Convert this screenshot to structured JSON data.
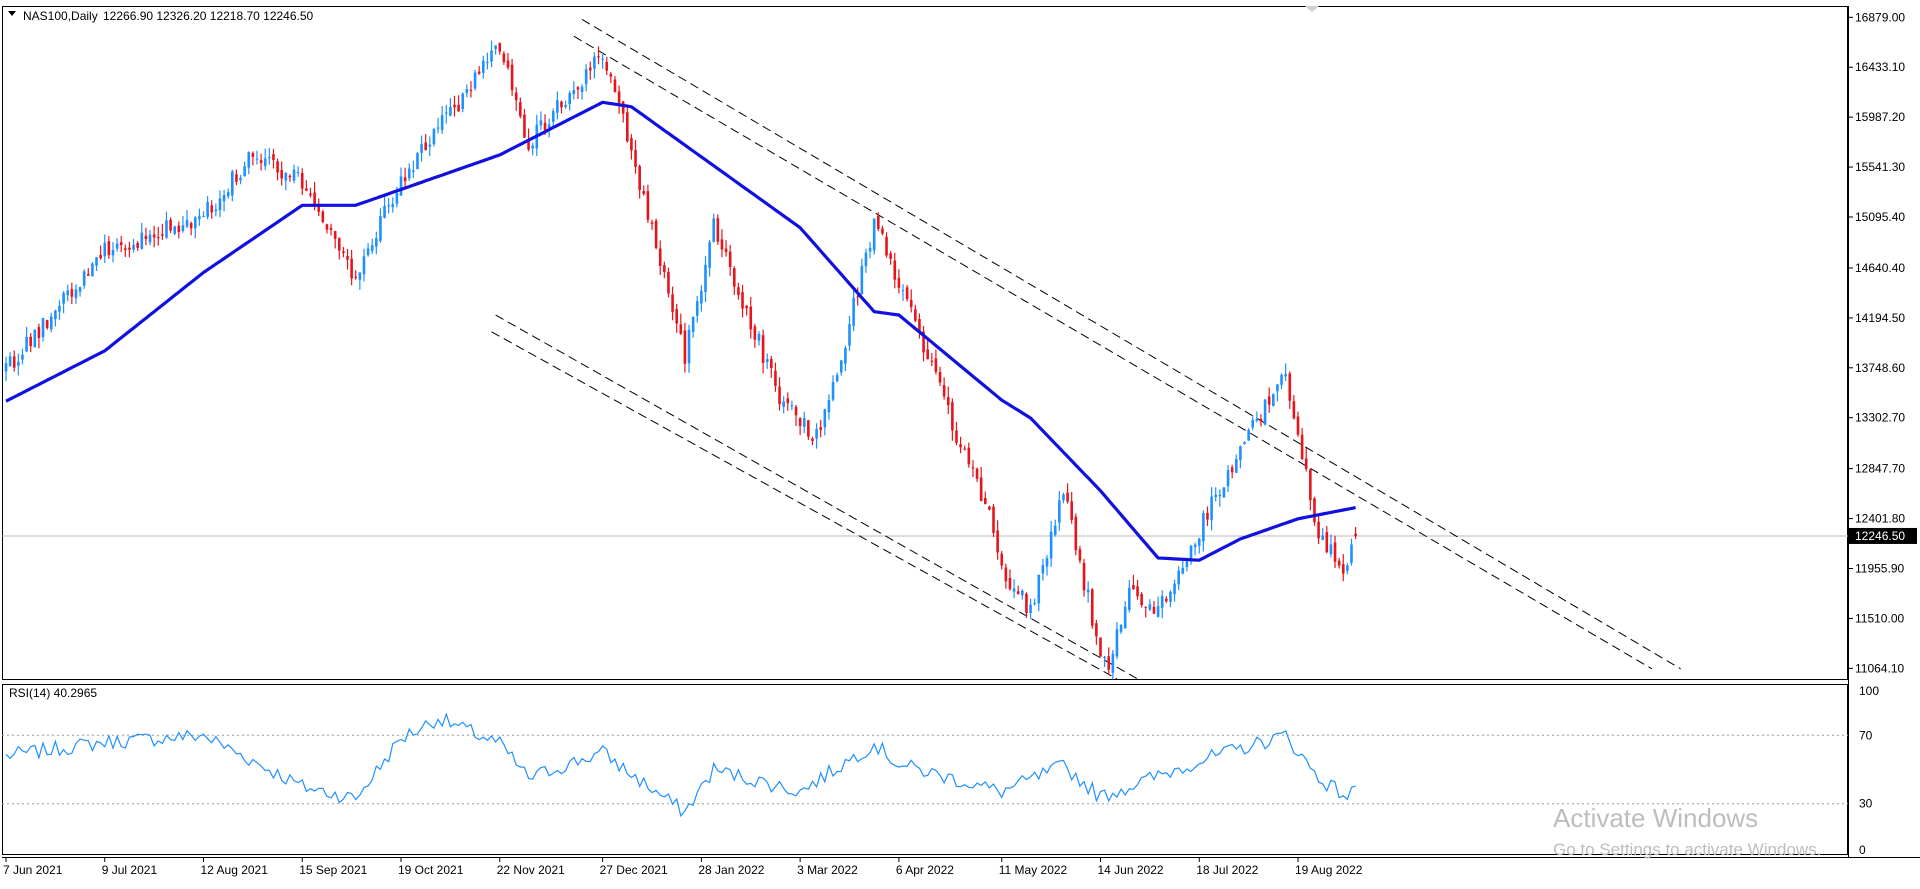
{
  "header": {
    "symbol": "NAS100,Daily",
    "ohlc": "12266.90 12326.20 12218.70 12246.50"
  },
  "price_axis": {
    "ticks": [
      "16879.00",
      "16433.10",
      "15987.20",
      "15541.30",
      "15095.40",
      "14640.40",
      "14194.50",
      "13748.60",
      "13302.70",
      "12847.70",
      "12401.80",
      "11955.90",
      "11510.00",
      "11064.10"
    ],
    "current_label": "12246.50"
  },
  "rsi": {
    "label": "RSI(14) 40.2965",
    "ticks": [
      "100",
      "70",
      "30",
      "0"
    ]
  },
  "time_axis": {
    "labels": [
      "7 Jun 2021",
      "9 Jul 2021",
      "12 Aug 2021",
      "15 Sep 2021",
      "19 Oct 2021",
      "22 Nov 2021",
      "27 Dec 2021",
      "28 Jan 2022",
      "3 Mar 2022",
      "6 Apr 2022",
      "11 May 2022",
      "14 Jun 2022",
      "18 Jul 2022",
      "19 Aug 2022"
    ]
  },
  "watermark": {
    "line1": "Activate Windows",
    "line2": "Go to Settings to activate Windows."
  },
  "colors": {
    "bull": "#1e90ff",
    "bear": "#e8141c",
    "ma": "#1010e0",
    "rsi": "#1e90ff",
    "channel": "#000000"
  },
  "chart_data": [
    {
      "type": "candlestick",
      "symbol": "NAS100",
      "timeframe": "Daily",
      "ylim": [
        10960,
        16980
      ],
      "last": {
        "open": 12266.9,
        "high": 12326.2,
        "low": 12218.7,
        "close": 12246.5
      },
      "close_waypoints": [
        {
          "x": "7 Jun 2021",
          "y": 13720
        },
        {
          "x": "9 Jul 2021",
          "y": 14800
        },
        {
          "x": "12 Aug 2021",
          "y": 15100
        },
        {
          "x": "30 Aug 2021",
          "y": 15650
        },
        {
          "x": "15 Sep 2021",
          "y": 15400
        },
        {
          "x": "4 Oct 2021",
          "y": 14550
        },
        {
          "x": "19 Oct 2021",
          "y": 15450
        },
        {
          "x": "22 Nov 2021",
          "y": 16600
        },
        {
          "x": "1 Dec 2021",
          "y": 15750
        },
        {
          "x": "27 Dec 2021",
          "y": 16550
        },
        {
          "x": "5 Jan 2022",
          "y": 15700
        },
        {
          "x": "24 Jan 2022",
          "y": 13850
        },
        {
          "x": "2 Feb 2022",
          "y": 15000
        },
        {
          "x": "24 Feb 2022",
          "y": 13500
        },
        {
          "x": "8 Mar 2022",
          "y": 13150
        },
        {
          "x": "14 Mar 2022",
          "y": 13400
        },
        {
          "x": "29 Mar 2022",
          "y": 15050
        },
        {
          "x": "6 Apr 2022",
          "y": 14500
        },
        {
          "x": "9 May 2022",
          "y": 12300
        },
        {
          "x": "11 May 2022",
          "y": 11900
        },
        {
          "x": "20 May 2022",
          "y": 11600
        },
        {
          "x": "1 Jun 2022",
          "y": 12650
        },
        {
          "x": "14 Jun 2022",
          "y": 11200
        },
        {
          "x": "16 Jun 2022",
          "y": 11100
        },
        {
          "x": "23 Jun 2022",
          "y": 11800
        },
        {
          "x": "4 Jul 2022",
          "y": 11600
        },
        {
          "x": "18 Jul 2022",
          "y": 12300
        },
        {
          "x": "1 Aug 2022",
          "y": 13050
        },
        {
          "x": "16 Aug 2022",
          "y": 13680
        },
        {
          "x": "19 Aug 2022",
          "y": 13200
        },
        {
          "x": "26 Aug 2022",
          "y": 12250
        },
        {
          "x": "6 Sep 2022",
          "y": 11950
        },
        {
          "x": "8 Sep 2022",
          "y": 12246.5
        }
      ],
      "moving_average": [
        {
          "x": "7 Jun 2021",
          "y": 13450
        },
        {
          "x": "9 Jul 2021",
          "y": 13900
        },
        {
          "x": "12 Aug 2021",
          "y": 14600
        },
        {
          "x": "15 Sep 2021",
          "y": 15200
        },
        {
          "x": "4 Oct 2021",
          "y": 15200
        },
        {
          "x": "22 Nov 2021",
          "y": 15650
        },
        {
          "x": "27 Dec 2021",
          "y": 16120
        },
        {
          "x": "5 Jan 2022",
          "y": 16080
        },
        {
          "x": "3 Mar 2022",
          "y": 15000
        },
        {
          "x": "29 Mar 2022",
          "y": 14250
        },
        {
          "x": "6 Apr 2022",
          "y": 14220
        },
        {
          "x": "11 May 2022",
          "y": 13460
        },
        {
          "x": "20 May 2022",
          "y": 13300
        },
        {
          "x": "14 Jun 2022",
          "y": 12650
        },
        {
          "x": "4 Jul 2022",
          "y": 12050
        },
        {
          "x": "18 Jul 2022",
          "y": 12030
        },
        {
          "x": "1 Aug 2022",
          "y": 12220
        },
        {
          "x": "19 Aug 2022",
          "y": 12400
        },
        {
          "x": "8 Sep 2022",
          "y": 12500
        }
      ],
      "channel_lines": [
        {
          "from": {
            "x": "20 Dec 2021",
            "y": 16860
          },
          "to": {
            "x": "28 Dec 2022",
            "y": 11060
          }
        },
        {
          "from": {
            "x": "16 Dec 2021",
            "y": 16710
          },
          "to": {
            "x": "19 Dec 2022",
            "y": 11060
          }
        },
        {
          "from": {
            "x": "19 Nov 2021",
            "y": 14220
          },
          "to": {
            "x": "27 Jun 2022",
            "y": 10970
          }
        },
        {
          "from": {
            "x": "18 Nov 2021",
            "y": 14070
          },
          "to": {
            "x": "20 Jun 2022",
            "y": 10970
          }
        }
      ]
    },
    {
      "type": "line",
      "name": "RSI(14)",
      "ylim": [
        0,
        100
      ],
      "levels": [
        70,
        30
      ],
      "last": 40.2965,
      "values": [
        {
          "x": "7 Jun 2021",
          "y": 58
        },
        {
          "x": "9 Jul 2021",
          "y": 66
        },
        {
          "x": "12 Aug 2021",
          "y": 70
        },
        {
          "x": "15 Sep 2021",
          "y": 40
        },
        {
          "x": "4 Oct 2021",
          "y": 33
        },
        {
          "x": "19 Oct 2021",
          "y": 68
        },
        {
          "x": "1 Nov 2021",
          "y": 80
        },
        {
          "x": "22 Nov 2021",
          "y": 65
        },
        {
          "x": "1 Dec 2021",
          "y": 45
        },
        {
          "x": "27 Dec 2021",
          "y": 60
        },
        {
          "x": "5 Jan 2022",
          "y": 47
        },
        {
          "x": "24 Jan 2022",
          "y": 25
        },
        {
          "x": "2 Feb 2022",
          "y": 50
        },
        {
          "x": "3 Mar 2022",
          "y": 37
        },
        {
          "x": "29 Mar 2022",
          "y": 65
        },
        {
          "x": "6 Apr 2022",
          "y": 53
        },
        {
          "x": "11 May 2022",
          "y": 37
        },
        {
          "x": "1 Jun 2022",
          "y": 52
        },
        {
          "x": "14 Jun 2022",
          "y": 34
        },
        {
          "x": "18 Jul 2022",
          "y": 55
        },
        {
          "x": "16 Aug 2022",
          "y": 70
        },
        {
          "x": "26 Aug 2022",
          "y": 45
        },
        {
          "x": "6 Sep 2022",
          "y": 34
        },
        {
          "x": "8 Sep 2022",
          "y": 40.3
        }
      ]
    }
  ]
}
